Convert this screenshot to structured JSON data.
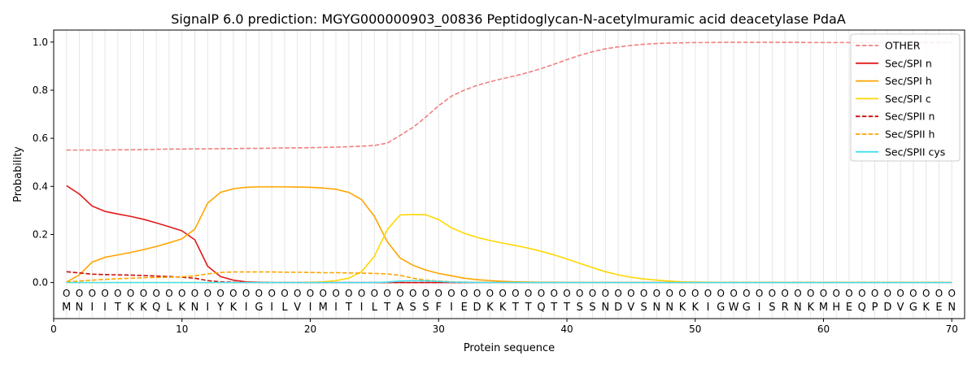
{
  "chart_data": {
    "type": "line",
    "title": "SignalP 6.0 prediction: MGYG000000903_00836 Peptidoglycan-N-acetylmuramic acid deacetylase PdaA",
    "xlabel": "Protein sequence",
    "ylabel": "Probability",
    "xlim": [
      0,
      71
    ],
    "ylim": [
      -0.15,
      1.05
    ],
    "xticks": [
      0,
      10,
      20,
      30,
      40,
      50,
      60,
      70
    ],
    "yticks": [
      0.0,
      0.2,
      0.4,
      0.6,
      0.8,
      1.0
    ],
    "xtick_labels": [
      "0",
      "10",
      "20",
      "30",
      "40",
      "50",
      "60",
      "70"
    ],
    "ytick_labels": [
      "0.0",
      "0.2",
      "0.4",
      "0.6",
      "0.8",
      "1.0"
    ],
    "legend_position": "top-right",
    "sequence": [
      "M",
      "N",
      "I",
      "I",
      "T",
      "K",
      "K",
      "Q",
      "L",
      "K",
      "N",
      "I",
      "Y",
      "K",
      "I",
      "G",
      "I",
      "L",
      "V",
      "I",
      "M",
      "I",
      "T",
      "I",
      "L",
      "T",
      "A",
      "S",
      "S",
      "F",
      "I",
      "E",
      "D",
      "K",
      "K",
      "T",
      "T",
      "Q",
      "T",
      "T",
      "S",
      "S",
      "N",
      "D",
      "V",
      "S",
      "N",
      "N",
      "K",
      "K",
      "I",
      "G",
      "W",
      "G",
      "I",
      "S",
      "R",
      "N",
      "K",
      "M",
      "H",
      "E",
      "Q",
      "P",
      "D",
      "V",
      "G",
      "K",
      "E",
      "N"
    ],
    "region_marker": "O",
    "series": [
      {
        "name": "OTHER",
        "color": "#f08080",
        "dash": "dashed",
        "values": [
          0.551,
          0.551,
          0.551,
          0.551,
          0.552,
          0.552,
          0.553,
          0.554,
          0.555,
          0.555,
          0.556,
          0.556,
          0.557,
          0.557,
          0.558,
          0.558,
          0.559,
          0.56,
          0.56,
          0.561,
          0.562,
          0.563,
          0.565,
          0.567,
          0.57,
          0.58,
          0.612,
          0.645,
          0.688,
          0.735,
          0.775,
          0.8,
          0.82,
          0.835,
          0.848,
          0.86,
          0.874,
          0.89,
          0.908,
          0.927,
          0.945,
          0.96,
          0.972,
          0.98,
          0.986,
          0.991,
          0.994,
          0.996,
          0.997,
          0.998,
          0.998,
          0.999,
          0.999,
          0.999,
          0.999,
          0.999,
          0.999,
          0.999,
          0.998,
          0.998,
          0.998,
          0.998,
          0.998,
          0.998,
          0.998,
          0.998,
          0.998,
          0.998,
          0.998,
          0.998
        ]
      },
      {
        "name": "Sec/SPI n",
        "color": "#e31a1c",
        "dash": "solid",
        "values": [
          0.403,
          0.368,
          0.318,
          0.296,
          0.285,
          0.275,
          0.263,
          0.248,
          0.232,
          0.215,
          0.178,
          0.068,
          0.025,
          0.01,
          0.003,
          0.001,
          0,
          0,
          0,
          0,
          0,
          0,
          0,
          0,
          0,
          0,
          0,
          0,
          0,
          0,
          0,
          0,
          0,
          0,
          0,
          0,
          0,
          0,
          0,
          0,
          0,
          0,
          0,
          0,
          0,
          0,
          0,
          0,
          0,
          0,
          0,
          0,
          0,
          0,
          0,
          0,
          0,
          0,
          0,
          0,
          0,
          0,
          0,
          0,
          0,
          0,
          0,
          0,
          0,
          0
        ]
      },
      {
        "name": "Sec/SPI h",
        "color": "#ffa500",
        "dash": "solid",
        "values": [
          0.002,
          0.032,
          0.085,
          0.105,
          0.115,
          0.125,
          0.137,
          0.15,
          0.165,
          0.182,
          0.222,
          0.33,
          0.375,
          0.39,
          0.396,
          0.398,
          0.398,
          0.398,
          0.397,
          0.396,
          0.393,
          0.388,
          0.375,
          0.345,
          0.275,
          0.17,
          0.102,
          0.072,
          0.052,
          0.038,
          0.028,
          0.018,
          0.012,
          0.008,
          0.005,
          0.003,
          0.002,
          0.001,
          0.001,
          0,
          0,
          0,
          0,
          0,
          0,
          0,
          0,
          0,
          0,
          0,
          0,
          0,
          0,
          0,
          0,
          0,
          0,
          0,
          0,
          0,
          0,
          0,
          0,
          0,
          0,
          0,
          0,
          0,
          0,
          0
        ]
      },
      {
        "name": "Sec/SPI c",
        "color": "#ffd700",
        "dash": "solid",
        "values": [
          0,
          0,
          0,
          0,
          0,
          0,
          0,
          0,
          0,
          0,
          0,
          0,
          0,
          0,
          0,
          0,
          0,
          0,
          0,
          0.001,
          0.003,
          0.008,
          0.018,
          0.045,
          0.11,
          0.22,
          0.281,
          0.283,
          0.282,
          0.262,
          0.228,
          0.205,
          0.188,
          0.175,
          0.164,
          0.154,
          0.143,
          0.13,
          0.115,
          0.098,
          0.08,
          0.062,
          0.045,
          0.032,
          0.022,
          0.015,
          0.01,
          0.006,
          0.003,
          0.002,
          0.001,
          0,
          0,
          0,
          0,
          0,
          0,
          0,
          0,
          0,
          0,
          0,
          0,
          0,
          0,
          0,
          0,
          0,
          0,
          0
        ]
      },
      {
        "name": "Sec/SPII n",
        "color": "#c81010",
        "dash": "dashed",
        "values": [
          0.045,
          0.04,
          0.035,
          0.033,
          0.032,
          0.031,
          0.029,
          0.027,
          0.025,
          0.022,
          0.018,
          0.008,
          0.003,
          0.001,
          0,
          0,
          0,
          0,
          0,
          0,
          0,
          0,
          0,
          0,
          0,
          0,
          0,
          0,
          0,
          0,
          0,
          0,
          0,
          0,
          0,
          0,
          0,
          0,
          0,
          0,
          0,
          0,
          0,
          0,
          0,
          0,
          0,
          0,
          0,
          0,
          0,
          0,
          0,
          0,
          0,
          0,
          0,
          0,
          0,
          0,
          0,
          0,
          0,
          0,
          0,
          0,
          0,
          0,
          0,
          0
        ]
      },
      {
        "name": "Sec/SPII h",
        "color": "#ffa500",
        "dash": "dashed",
        "values": [
          0.002,
          0.006,
          0.01,
          0.013,
          0.016,
          0.018,
          0.02,
          0.021,
          0.022,
          0.024,
          0.028,
          0.036,
          0.042,
          0.044,
          0.044,
          0.044,
          0.044,
          0.043,
          0.043,
          0.042,
          0.041,
          0.041,
          0.04,
          0.039,
          0.038,
          0.036,
          0.03,
          0.018,
          0.01,
          0.006,
          0.003,
          0.002,
          0.001,
          0,
          0,
          0,
          0,
          0,
          0,
          0,
          0,
          0,
          0,
          0,
          0,
          0,
          0,
          0,
          0,
          0,
          0,
          0,
          0,
          0,
          0,
          0,
          0,
          0,
          0,
          0,
          0,
          0,
          0,
          0,
          0,
          0,
          0,
          0,
          0,
          0
        ]
      },
      {
        "name": "Sec/SPII cys",
        "color": "#40e0f0",
        "dash": "solid",
        "values": [
          0,
          0,
          0,
          0,
          0,
          0,
          0,
          0,
          0,
          0,
          0,
          0,
          0,
          0,
          0,
          0,
          0,
          0,
          0,
          0,
          0,
          0,
          0,
          0,
          0,
          0.002,
          0.006,
          0.008,
          0.007,
          0.005,
          0.002,
          0.001,
          0,
          0,
          0,
          0,
          0,
          0,
          0,
          0,
          0,
          0,
          0,
          0,
          0,
          0,
          0,
          0,
          0,
          0,
          0,
          0,
          0,
          0,
          0,
          0,
          0,
          0,
          0,
          0,
          0,
          0,
          0,
          0,
          0,
          0,
          0,
          0,
          0,
          0
        ]
      }
    ]
  }
}
